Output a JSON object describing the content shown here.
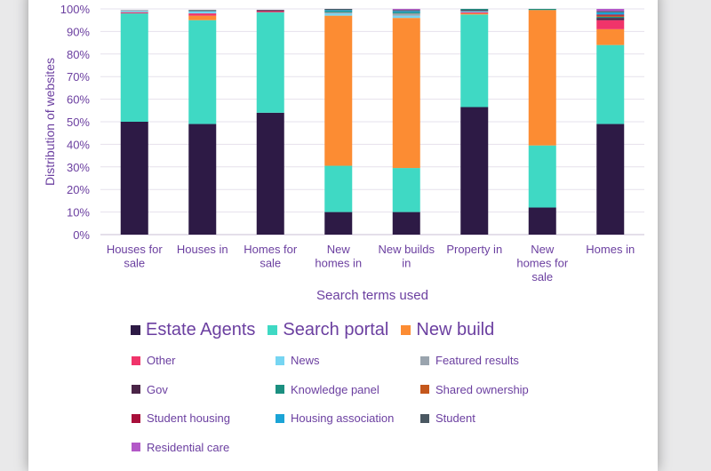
{
  "chart_data": {
    "type": "bar",
    "stacked": true,
    "ylabel": "Distribution of websites",
    "xlabel": "Search terms used",
    "ylim": [
      0,
      100
    ],
    "yticks": [
      "0%",
      "10%",
      "20%",
      "30%",
      "40%",
      "50%",
      "60%",
      "70%",
      "80%",
      "90%",
      "100%"
    ],
    "categories": [
      [
        "Houses for",
        "sale"
      ],
      [
        "Houses in"
      ],
      [
        "Homes for",
        "sale"
      ],
      [
        "New",
        "homes in"
      ],
      [
        "New builds",
        "in"
      ],
      [
        "Property in"
      ],
      [
        "New",
        "homes for",
        "sale"
      ],
      [
        "Homes in"
      ]
    ],
    "series": [
      {
        "name": "Estate Agents",
        "color": "#2d1a45",
        "values": [
          50,
          49,
          54,
          10,
          10,
          56.5,
          12,
          49
        ]
      },
      {
        "name": "Search portal",
        "color": "#3fd9c4",
        "values": [
          48,
          46,
          44.5,
          20.5,
          19.5,
          41,
          27.5,
          35
        ]
      },
      {
        "name": "New build",
        "color": "#fc8c33",
        "values": [
          0,
          2,
          0,
          66.5,
          66.5,
          0.5,
          60,
          7
        ]
      },
      {
        "name": "Other",
        "color": "#f0346a",
        "values": [
          0.5,
          1,
          0.5,
          0,
          0,
          0.5,
          0,
          4
        ]
      },
      {
        "name": "News",
        "color": "#76d5f2",
        "values": [
          0.5,
          1,
          0,
          1,
          1,
          0.5,
          0,
          0
        ]
      },
      {
        "name": "Featured results",
        "color": "#9aa4ae",
        "values": [
          0.5,
          0,
          0,
          0.5,
          1,
          0,
          0,
          0
        ]
      },
      {
        "name": "Gov",
        "color": "#4a2447",
        "values": [
          0,
          0,
          0.5,
          0,
          0,
          0.5,
          0,
          1
        ]
      },
      {
        "name": "Knowledge panel",
        "color": "#1b8f80",
        "values": [
          0,
          0,
          0,
          0.5,
          0.5,
          0.5,
          0.5,
          0.5
        ]
      },
      {
        "name": "Shared ownership",
        "color": "#c4571c",
        "values": [
          0,
          0,
          0,
          0,
          0,
          0,
          0,
          0.5
        ]
      },
      {
        "name": "Student housing",
        "color": "#a80f3a",
        "values": [
          0,
          0,
          0,
          0,
          0,
          0,
          0,
          0.5
        ]
      },
      {
        "name": "Housing association",
        "color": "#1ba4d6",
        "values": [
          0,
          0,
          0,
          0.5,
          0.5,
          0,
          0,
          1
        ]
      },
      {
        "name": "Student",
        "color": "#4a5862",
        "values": [
          0,
          0.5,
          0,
          0.5,
          0.5,
          0,
          0,
          0.5
        ]
      },
      {
        "name": "Residential care",
        "color": "#b359c8",
        "values": [
          0,
          0,
          0,
          0,
          0.5,
          0,
          0,
          1
        ]
      }
    ],
    "legend": {
      "primary": [
        "Estate Agents",
        "Search portal",
        "New build"
      ],
      "secondary": [
        "Other",
        "News",
        "Featured results",
        "Gov",
        "Knowledge panel",
        "Shared ownership",
        "Student housing",
        "Housing association",
        "Student",
        "Residential care"
      ]
    },
    "grid": true
  }
}
